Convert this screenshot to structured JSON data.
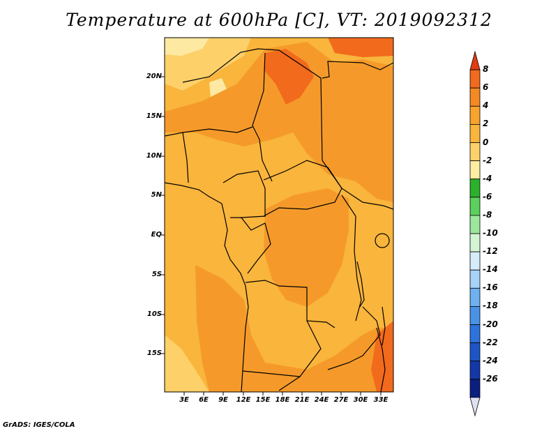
{
  "title": "Temperature at 600hPa [C], VT: 2019092312",
  "credit": "GrADS: IGES/COLA",
  "map": {
    "lat_ticks": [
      "20N",
      "15N",
      "10N",
      "5N",
      "EQ",
      "5S",
      "10S",
      "15S"
    ],
    "lon_ticks": [
      "3E",
      "6E",
      "9E",
      "12E",
      "15E",
      "18E",
      "21E",
      "24E",
      "27E",
      "30E",
      "33E"
    ],
    "colors": {
      "base": "#f9b53c",
      "warm": "#f59a2a",
      "hot": "#f26a1c",
      "cool": "#fdd06a",
      "pale": "#fde9a2",
      "land_line": "#000000"
    }
  },
  "colorbar": {
    "labels": [
      "8",
      "6",
      "4",
      "2",
      "0",
      "-2",
      "-4",
      "-6",
      "-8",
      "-10",
      "-12",
      "-14",
      "-16",
      "-18",
      "-20",
      "-22",
      "-24",
      "-26"
    ],
    "colors": [
      "#e23d12",
      "#f26a1c",
      "#f58a24",
      "#f7a32e",
      "#f9b53c",
      "#fcd16b",
      "#fdeea3",
      "#2bb12b",
      "#5cd05c",
      "#9ce79c",
      "#d4f4d4",
      "#d6ecfb",
      "#a6d3f7",
      "#6fb1ef",
      "#4992e6",
      "#2d73db",
      "#1d55c6",
      "#1438a8",
      "#0b1f80",
      "#dfe0f2"
    ]
  }
}
